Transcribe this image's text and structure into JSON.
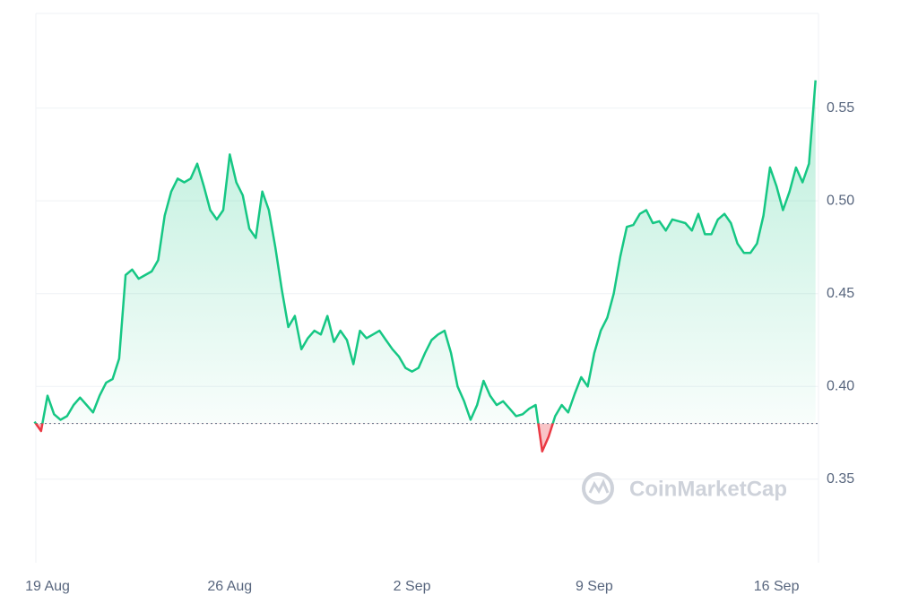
{
  "chart_data": {
    "type": "line",
    "categories": [
      null,
      null,
      "19 Aug",
      null,
      null,
      null,
      null,
      null,
      null,
      null,
      null,
      null,
      null,
      null,
      null,
      null,
      null,
      null,
      null,
      null,
      null,
      null,
      null,
      null,
      null,
      null,
      null,
      null,
      null,
      null,
      "26 Aug",
      null,
      null,
      null,
      null,
      null,
      null,
      null,
      null,
      null,
      null,
      null,
      null,
      null,
      null,
      null,
      null,
      null,
      null,
      null,
      null,
      null,
      null,
      null,
      null,
      null,
      null,
      null,
      "2 Sep",
      null,
      null,
      null,
      null,
      null,
      null,
      null,
      null,
      null,
      null,
      null,
      null,
      null,
      null,
      null,
      null,
      null,
      null,
      null,
      null,
      null,
      null,
      null,
      null,
      null,
      null,
      null,
      "9 Sep",
      null,
      null,
      null,
      null,
      null,
      null,
      null,
      null,
      null,
      null,
      null,
      null,
      null,
      null,
      null,
      null,
      null,
      null,
      null,
      null,
      null,
      null,
      null,
      null,
      null,
      null,
      null,
      "16 Sep",
      null,
      null,
      null,
      null,
      null,
      null
    ],
    "values": [
      0.381,
      0.376,
      0.395,
      0.385,
      0.382,
      0.384,
      0.39,
      0.394,
      0.39,
      0.386,
      0.395,
      0.402,
      0.404,
      0.415,
      0.46,
      0.463,
      0.458,
      0.46,
      0.462,
      0.468,
      0.492,
      0.505,
      0.512,
      0.51,
      0.512,
      0.52,
      0.508,
      0.495,
      0.49,
      0.495,
      0.525,
      0.51,
      0.503,
      0.485,
      0.48,
      0.505,
      0.495,
      0.475,
      0.452,
      0.432,
      0.438,
      0.42,
      0.426,
      0.43,
      0.428,
      0.438,
      0.424,
      0.43,
      0.425,
      0.412,
      0.43,
      0.426,
      0.428,
      0.43,
      0.425,
      0.42,
      0.416,
      0.41,
      0.408,
      0.41,
      0.418,
      0.425,
      0.428,
      0.43,
      0.418,
      0.4,
      0.392,
      0.382,
      0.39,
      0.403,
      0.395,
      0.39,
      0.392,
      0.388,
      0.384,
      0.385,
      0.388,
      0.39,
      0.365,
      0.373,
      0.384,
      0.39,
      0.386,
      0.396,
      0.405,
      0.4,
      0.418,
      0.43,
      0.437,
      0.45,
      0.47,
      0.486,
      0.487,
      0.493,
      0.495,
      0.488,
      0.489,
      0.484,
      0.49,
      0.489,
      0.488,
      0.484,
      0.493,
      0.482,
      0.482,
      0.49,
      0.493,
      0.488,
      0.477,
      0.472,
      0.472,
      0.477,
      0.492,
      0.518,
      0.508,
      0.495,
      0.505,
      0.518,
      0.51,
      0.52,
      0.565
    ],
    "color": "#16c784",
    "negative_color": "#ea3943",
    "baseline": 0.38,
    "ylim": [
      0.305,
      0.601
    ],
    "yticks": [
      0.35,
      {
        "value": 0.4,
        "label": "0.40"
      },
      0.45,
      {
        "value": 0.5,
        "label": "0.50"
      },
      0.55
    ],
    "grid": true,
    "watermark": "CoinMarketCap"
  }
}
